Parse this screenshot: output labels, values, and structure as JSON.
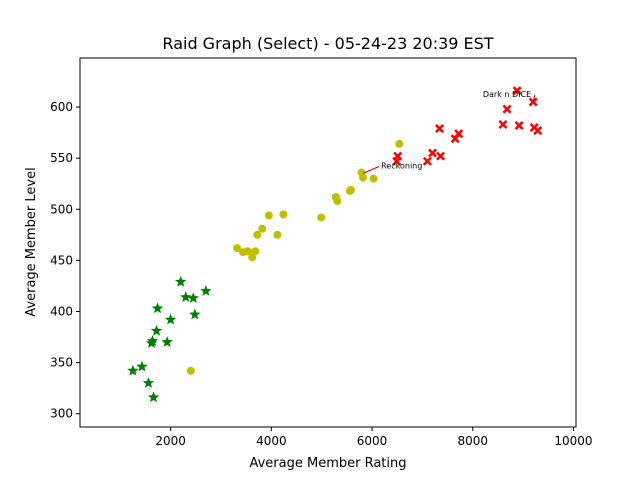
{
  "chart_data": {
    "type": "scatter",
    "title": "Raid Graph (Select) - 05-24-23 20:39 EST",
    "xlabel": "Average Member Rating",
    "ylabel": "Average Member Level",
    "xlim": [
      200,
      10050
    ],
    "ylim": [
      287,
      648
    ],
    "xticks": [
      2000,
      4000,
      6000,
      8000,
      10000
    ],
    "yticks": [
      300,
      350,
      400,
      450,
      500,
      550,
      600
    ],
    "grid": false,
    "series": [
      {
        "marker": "star",
        "color": "#008000",
        "points": [
          [
            1250,
            342
          ],
          [
            1430,
            346
          ],
          [
            1560,
            330
          ],
          [
            1620,
            369
          ],
          [
            1640,
            371
          ],
          [
            1660,
            316
          ],
          [
            1720,
            381
          ],
          [
            1740,
            403
          ],
          [
            1930,
            370
          ],
          [
            2000,
            392
          ],
          [
            2200,
            429
          ],
          [
            2300,
            414
          ],
          [
            2450,
            413
          ],
          [
            2480,
            397
          ],
          [
            2700,
            420
          ]
        ]
      },
      {
        "marker": "circle",
        "color": "#bfbf00",
        "points": [
          [
            2400,
            342
          ],
          [
            3320,
            462
          ],
          [
            3440,
            458
          ],
          [
            3530,
            459
          ],
          [
            3620,
            453
          ],
          [
            3680,
            459
          ],
          [
            3720,
            475
          ],
          [
            3820,
            481
          ],
          [
            3950,
            494
          ],
          [
            4120,
            475
          ],
          [
            4240,
            495
          ],
          [
            4990,
            492
          ],
          [
            5280,
            512
          ],
          [
            5310,
            508
          ],
          [
            5560,
            518
          ],
          [
            5580,
            519
          ],
          [
            5790,
            536
          ],
          [
            5820,
            531
          ],
          [
            6030,
            530
          ],
          [
            6540,
            564
          ]
        ]
      },
      {
        "marker": "x",
        "color": "#ff0000",
        "points": [
          [
            6490,
            547
          ],
          [
            6510,
            552
          ],
          [
            7100,
            547
          ],
          [
            7200,
            555
          ],
          [
            7340,
            579
          ],
          [
            7360,
            552
          ],
          [
            7650,
            569
          ],
          [
            7720,
            574
          ],
          [
            8600,
            583
          ],
          [
            8680,
            598
          ],
          [
            8880,
            616
          ],
          [
            8920,
            582
          ],
          [
            9200,
            605
          ],
          [
            9220,
            580
          ],
          [
            9290,
            577
          ]
        ]
      }
    ],
    "annotations": [
      {
        "text": "Reckoning",
        "point": [
          5820,
          535
        ],
        "text_at": [
          6180,
          540
        ]
      },
      {
        "text": "Dark n DICE",
        "point": [
          9200,
          605
        ],
        "text_at": [
          8200,
          610
        ]
      }
    ]
  }
}
